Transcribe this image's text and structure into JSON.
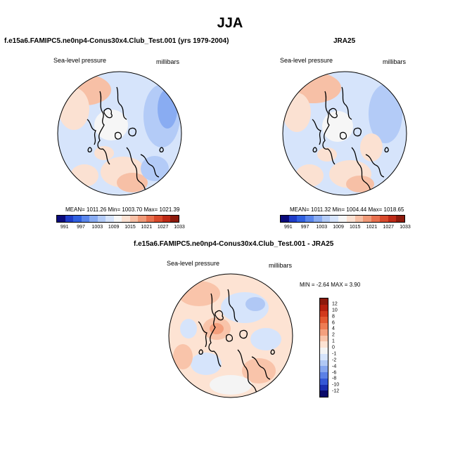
{
  "figure": {
    "title": "JJA"
  },
  "chart_data": [
    {
      "type": "heatmap",
      "projection": "north-polar-stereographic",
      "title": "f.e15a6.FAMIPC5.ne0np4-Conus30x4.Club_Test.001 (yrs 1979-2004)",
      "variable": "Sea-level pressure",
      "units": "millibars",
      "stats_text": "MEAN= 1011.26   Min= 1003.70   Max= 1021.39",
      "mean": 1011.26,
      "min": 1003.7,
      "max": 1021.39,
      "colorbar_levels": [
        "991",
        "997",
        "1003",
        "1009",
        "1015",
        "1021",
        "1027",
        "1033"
      ],
      "colorbar_orientation": "horizontal",
      "colors": [
        "#0a0a7a",
        "#1f3cc8",
        "#3060e0",
        "#5a86ec",
        "#89acf2",
        "#b3cbf7",
        "#d6e4fb",
        "#f6f6f6",
        "#fbe1d2",
        "#f7c0a6",
        "#f09a78",
        "#e8704e",
        "#d84a2c",
        "#bd2a17",
        "#8c1a0c"
      ]
    },
    {
      "type": "heatmap",
      "projection": "north-polar-stereographic",
      "title": "JRA25",
      "variable": "Sea-level pressure",
      "units": "millibars",
      "stats_text": "MEAN= 1011.32   Min= 1004.44   Max= 1018.65",
      "mean": 1011.32,
      "min": 1004.44,
      "max": 1018.65,
      "colorbar_levels": [
        "991",
        "997",
        "1003",
        "1009",
        "1015",
        "1021",
        "1027",
        "1033"
      ],
      "colorbar_orientation": "horizontal",
      "colors": [
        "#0a0a7a",
        "#1f3cc8",
        "#3060e0",
        "#5a86ec",
        "#89acf2",
        "#b3cbf7",
        "#d6e4fb",
        "#f6f6f6",
        "#fbe1d2",
        "#f7c0a6",
        "#f09a78",
        "#e8704e",
        "#d84a2c",
        "#bd2a17",
        "#8c1a0c"
      ]
    },
    {
      "type": "heatmap",
      "projection": "north-polar-stereographic",
      "title": "f.e15a6.FAMIPC5.ne0np4-Conus30x4.Club_Test.001 - JRA25",
      "variable": "Sea-level pressure",
      "units": "millibars",
      "stats_text": "MIN =  -2.64 MAX =   3.90",
      "min": -2.64,
      "max": 3.9,
      "colorbar_levels": [
        "12",
        "10",
        "8",
        "6",
        "4",
        "2",
        "1",
        "0",
        "-1",
        "-2",
        "-4",
        "-6",
        "-8",
        "-10",
        "-12"
      ],
      "colorbar_orientation": "vertical",
      "colors": [
        "#8c1a0c",
        "#b5210f",
        "#d23a1d",
        "#e45a32",
        "#ee7d54",
        "#f4a07e",
        "#f9c4aa",
        "#fde3d3",
        "#f4f4f4",
        "#d6e4fb",
        "#b0c8f5",
        "#86a6ef",
        "#5b80e6",
        "#3458d6",
        "#1a2fb0",
        "#0a0a6a"
      ]
    }
  ]
}
